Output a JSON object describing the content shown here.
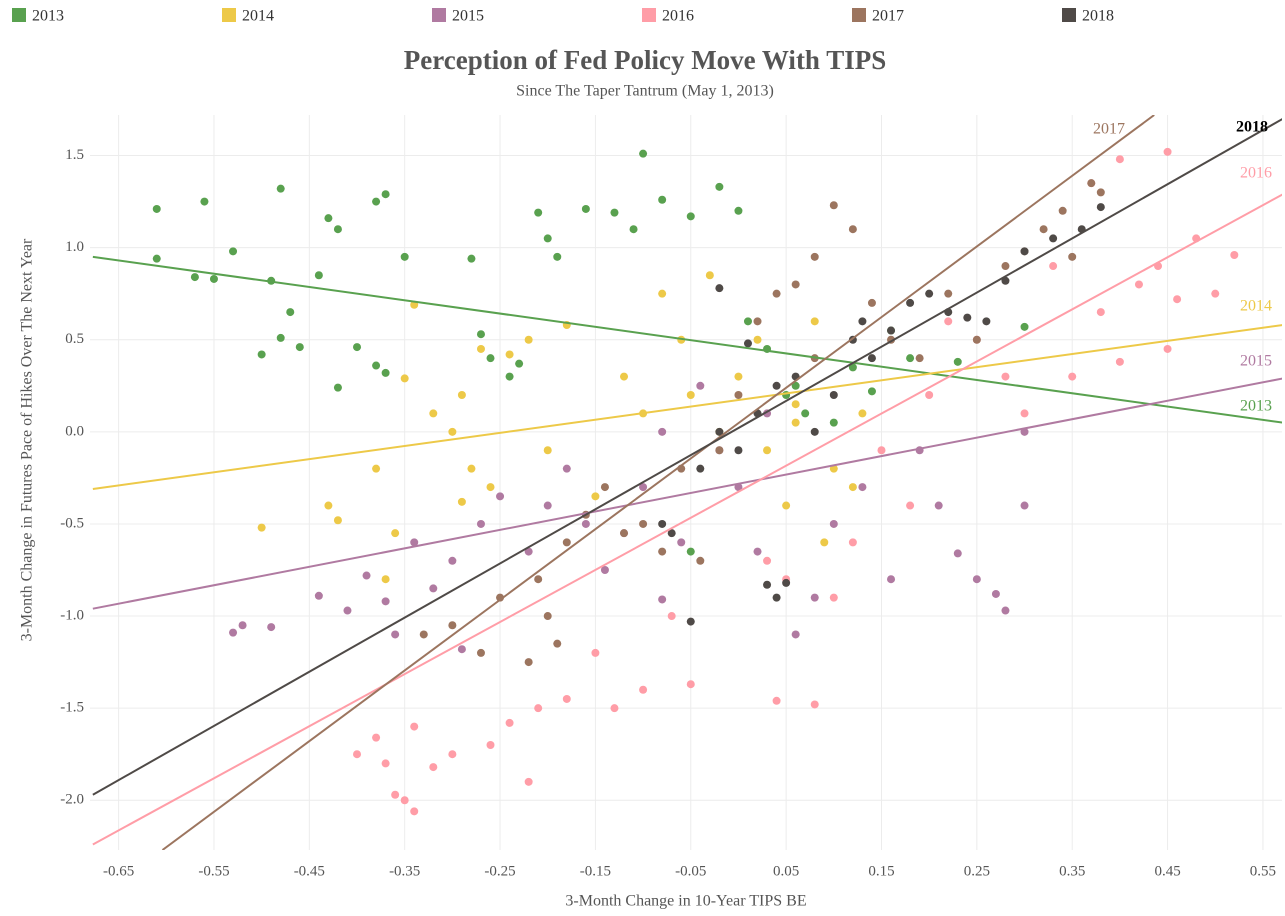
{
  "chart_data": {
    "type": "scatter",
    "title": "Perception of Fed Policy Move With TIPS",
    "subtitle": "Since The Taper Tantrum (May 1, 2013)",
    "x_label": "3-Month Change in 10-Year TIPS BE",
    "y_label": "3-Month Change in Futures Pace of Hikes Over The Next Year",
    "xlim": [
      -0.68,
      0.57
    ],
    "ylim": [
      -2.27,
      1.72
    ],
    "xticks": [
      -0.65,
      -0.55,
      -0.45,
      -0.35,
      -0.25,
      -0.15,
      -0.05,
      0.05,
      0.15,
      0.25,
      0.35,
      0.45,
      0.55
    ],
    "yticks": [
      1.5,
      {
        "value": 1,
        "label": "1.0"
      },
      0.5,
      {
        "value": 0,
        "label": "0.0"
      },
      -0.5,
      {
        "value": -1,
        "label": "-1.0"
      },
      -1.5,
      {
        "value": -2,
        "label": "-2.0"
      }
    ],
    "grid": true,
    "legend": "top",
    "series": [
      {
        "name": "2013",
        "color": "#59a14f",
        "x": [
          -0.61,
          -0.61,
          -0.56,
          -0.57,
          -0.55,
          -0.53,
          -0.49,
          -0.48,
          -0.47,
          -0.5,
          -0.48,
          -0.46,
          -0.44,
          -0.43,
          -0.42,
          -0.42,
          -0.4,
          -0.38,
          -0.37,
          -0.38,
          -0.37,
          -0.35,
          -0.28,
          -0.27,
          -0.26,
          -0.24,
          -0.23,
          -0.21,
          -0.2,
          -0.19,
          -0.16,
          -0.13,
          -0.11,
          -0.1,
          -0.08,
          -0.05,
          -0.02,
          0.0,
          0.01,
          0.03,
          0.05,
          0.07,
          0.1,
          0.12,
          0.14,
          0.16,
          0.18,
          0.3,
          0.23,
          -0.05,
          0.06
        ],
        "values": [
          1.21,
          0.94,
          1.25,
          0.84,
          0.83,
          0.98,
          0.82,
          1.32,
          0.65,
          0.42,
          0.51,
          0.46,
          0.85,
          1.16,
          1.1,
          0.24,
          0.46,
          1.25,
          1.29,
          0.36,
          0.32,
          0.95,
          0.94,
          0.53,
          0.4,
          0.3,
          0.37,
          1.19,
          1.05,
          0.95,
          1.21,
          1.19,
          1.1,
          1.51,
          1.26,
          1.17,
          1.33,
          1.2,
          0.6,
          0.45,
          0.2,
          0.1,
          0.05,
          0.35,
          0.22,
          0.55,
          0.4,
          0.57,
          0.38,
          -0.65,
          0.25
        ],
        "trend": {
          "x": [
            -0.677,
            0.571
          ],
          "y": [
            0.95,
            0.05
          ]
        }
      },
      {
        "name": "2014",
        "color": "#edc948",
        "x": [
          -0.5,
          -0.43,
          -0.42,
          -0.38,
          -0.36,
          -0.35,
          -0.34,
          -0.32,
          -0.3,
          -0.29,
          -0.28,
          -0.27,
          -0.26,
          -0.24,
          -0.22,
          -0.2,
          -0.18,
          -0.15,
          -0.12,
          -0.1,
          -0.08,
          -0.06,
          -0.05,
          -0.03,
          -0.02,
          0.0,
          0.02,
          0.03,
          0.05,
          0.06,
          0.08,
          0.1,
          0.12,
          0.13,
          -0.37,
          -0.29,
          0.09,
          0.06
        ],
        "values": [
          -0.52,
          -0.4,
          -0.48,
          -0.2,
          -0.55,
          0.29,
          0.69,
          0.1,
          0.0,
          0.2,
          -0.2,
          0.45,
          -0.3,
          0.42,
          0.5,
          -0.1,
          0.58,
          -0.35,
          0.3,
          0.1,
          0.75,
          0.5,
          0.2,
          0.85,
          0.0,
          0.3,
          0.5,
          -0.1,
          -0.4,
          0.15,
          0.6,
          -0.2,
          -0.3,
          0.1,
          -0.8,
          -0.38,
          -0.6,
          0.05
        ],
        "trend": {
          "x": [
            -0.677,
            0.571
          ],
          "y": [
            -0.31,
            0.58
          ]
        }
      },
      {
        "name": "2015",
        "color": "#b07aa1",
        "x": [
          -0.53,
          -0.52,
          -0.49,
          -0.44,
          -0.41,
          -0.39,
          -0.37,
          -0.36,
          -0.34,
          -0.32,
          -0.3,
          -0.29,
          -0.27,
          -0.25,
          -0.22,
          -0.2,
          -0.18,
          -0.16,
          -0.14,
          -0.12,
          -0.1,
          -0.08,
          -0.06,
          -0.04,
          -0.02,
          0.0,
          0.03,
          0.06,
          0.08,
          0.1,
          0.13,
          0.16,
          0.19,
          0.21,
          0.23,
          0.25,
          0.27,
          0.28,
          0.3,
          0.3,
          -0.08,
          0.02
        ],
        "values": [
          -1.09,
          -1.05,
          -1.06,
          -0.89,
          -0.97,
          -0.78,
          -0.92,
          -1.1,
          -0.6,
          -0.85,
          -0.7,
          -1.18,
          -0.5,
          -0.35,
          -0.65,
          -0.4,
          -0.2,
          -0.5,
          -0.75,
          -0.55,
          -0.3,
          0.0,
          -0.6,
          0.25,
          -0.1,
          -0.3,
          0.1,
          -1.1,
          -0.9,
          -0.5,
          -0.3,
          -0.8,
          -0.1,
          -0.4,
          -0.66,
          -0.8,
          -0.88,
          -0.97,
          -0.4,
          0.0,
          -0.91,
          -0.65
        ],
        "trend": {
          "x": [
            -0.677,
            0.571
          ],
          "y": [
            -0.96,
            0.29
          ]
        }
      },
      {
        "name": "2016",
        "color": "#ff9da7",
        "x": [
          -0.4,
          -0.38,
          -0.37,
          -0.36,
          -0.35,
          -0.34,
          -0.34,
          -0.32,
          -0.3,
          -0.26,
          -0.24,
          -0.22,
          -0.21,
          -0.18,
          -0.15,
          -0.13,
          -0.1,
          -0.07,
          -0.05,
          0.03,
          0.04,
          0.05,
          0.08,
          0.1,
          0.12,
          0.15,
          0.18,
          0.2,
          0.22,
          0.25,
          0.28,
          0.3,
          0.33,
          0.35,
          0.37,
          0.4,
          0.42,
          0.44,
          0.45,
          0.45,
          0.48,
          0.5,
          0.52,
          0.4,
          0.38,
          0.46
        ],
        "values": [
          -1.75,
          -1.66,
          -1.8,
          -1.97,
          -2.0,
          -2.06,
          -1.6,
          -1.82,
          -1.75,
          -1.7,
          -1.58,
          -1.9,
          -1.5,
          -1.45,
          -1.2,
          -1.5,
          -1.4,
          -1.0,
          -1.37,
          -0.7,
          -1.46,
          -0.8,
          -1.48,
          -0.9,
          -0.6,
          -0.1,
          -0.4,
          0.2,
          0.6,
          0.5,
          0.3,
          0.1,
          0.9,
          0.3,
          1.35,
          1.48,
          0.8,
          0.9,
          1.52,
          0.45,
          1.05,
          0.75,
          0.96,
          0.38,
          0.65,
          0.72
        ],
        "trend": {
          "x": [
            -0.677,
            0.571
          ],
          "y": [
            -2.24,
            1.29
          ]
        }
      },
      {
        "name": "2017",
        "color": "#9c755f",
        "x": [
          -0.33,
          -0.3,
          -0.27,
          -0.25,
          -0.22,
          -0.21,
          -0.19,
          -0.18,
          -0.16,
          -0.14,
          -0.12,
          -0.1,
          -0.08,
          -0.06,
          -0.04,
          -0.02,
          0.0,
          0.02,
          0.04,
          0.06,
          0.08,
          0.1,
          0.12,
          0.14,
          0.16,
          0.19,
          0.22,
          0.25,
          0.28,
          0.3,
          0.32,
          0.34,
          0.35,
          0.37,
          0.38,
          0.08,
          -0.2
        ],
        "values": [
          -1.1,
          -1.05,
          -1.2,
          -0.9,
          -1.25,
          -0.8,
          -1.15,
          -0.6,
          -0.45,
          -0.3,
          -0.55,
          -0.5,
          -0.65,
          -0.2,
          -0.7,
          -0.1,
          0.2,
          0.6,
          0.75,
          0.8,
          0.95,
          1.23,
          1.1,
          0.7,
          0.5,
          0.4,
          0.75,
          0.5,
          0.9,
          0.98,
          1.1,
          1.2,
          0.95,
          1.35,
          1.3,
          0.4,
          -1.0
        ],
        "trend": {
          "x": [
            -0.604,
            0.436
          ],
          "y": [
            -2.27,
            1.72
          ]
        }
      },
      {
        "name": "2018",
        "color": "#4f4a47",
        "x": [
          -0.05,
          0.03,
          0.05,
          0.04,
          -0.08,
          -0.07,
          -0.04,
          -0.02,
          0.0,
          0.02,
          0.04,
          0.06,
          0.08,
          0.1,
          0.12,
          0.14,
          0.16,
          0.18,
          0.2,
          0.22,
          0.24,
          0.26,
          0.28,
          0.3,
          0.33,
          0.36,
          0.38,
          -0.02,
          0.13,
          0.01
        ],
        "values": [
          -1.03,
          -0.83,
          -0.82,
          -0.9,
          -0.5,
          -0.55,
          -0.2,
          0.0,
          -0.1,
          0.1,
          0.25,
          0.3,
          0.0,
          0.2,
          0.5,
          0.4,
          0.55,
          0.7,
          0.75,
          0.65,
          0.62,
          0.6,
          0.82,
          0.98,
          1.05,
          1.1,
          1.22,
          0.78,
          0.6,
          0.48
        ],
        "trend": {
          "x": [
            -0.677,
            0.571
          ],
          "y": [
            -1.97,
            1.7
          ]
        }
      }
    ]
  }
}
